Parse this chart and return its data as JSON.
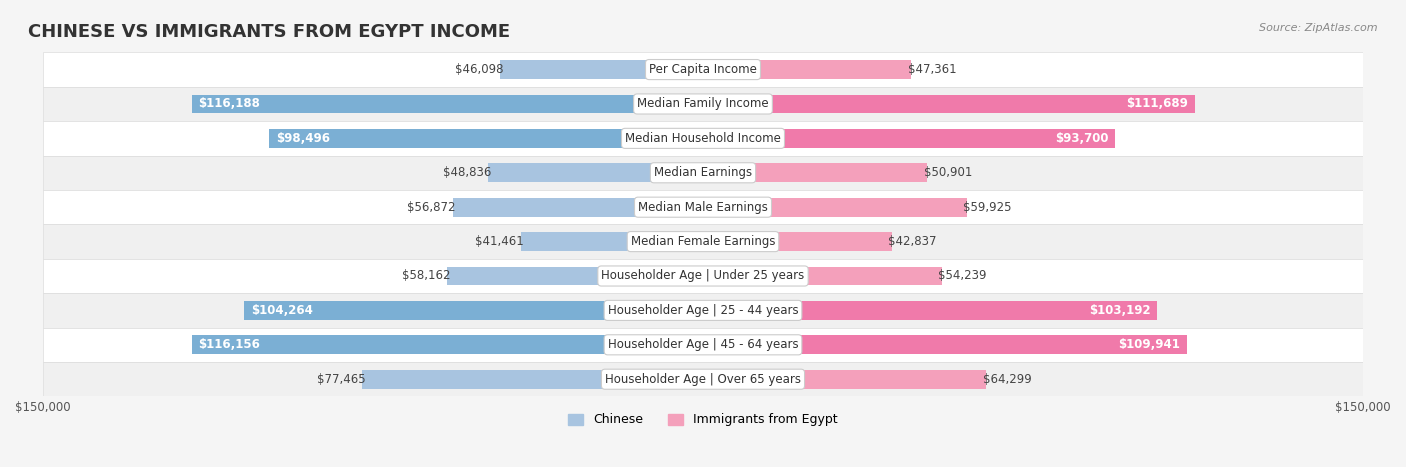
{
  "title": "CHINESE VS IMMIGRANTS FROM EGYPT INCOME",
  "source": "Source: ZipAtlas.com",
  "categories": [
    "Per Capita Income",
    "Median Family Income",
    "Median Household Income",
    "Median Earnings",
    "Median Male Earnings",
    "Median Female Earnings",
    "Householder Age | Under 25 years",
    "Householder Age | 25 - 44 years",
    "Householder Age | 45 - 64 years",
    "Householder Age | Over 65 years"
  ],
  "chinese_values": [
    46098,
    116188,
    98496,
    48836,
    56872,
    41461,
    58162,
    104264,
    116156,
    77465
  ],
  "egypt_values": [
    47361,
    111689,
    93700,
    50901,
    59925,
    42837,
    54239,
    103192,
    109941,
    64299
  ],
  "chinese_labels": [
    "$46,098",
    "$116,188",
    "$98,496",
    "$48,836",
    "$56,872",
    "$41,461",
    "$58,162",
    "$104,264",
    "$116,156",
    "$77,465"
  ],
  "egypt_labels": [
    "$47,361",
    "$111,689",
    "$93,700",
    "$50,901",
    "$59,925",
    "$42,837",
    "$54,239",
    "$103,192",
    "$109,941",
    "$64,299"
  ],
  "max_value": 150000,
  "chinese_color": "#a8c4e0",
  "egypt_color": "#f4a0bb",
  "chinese_dark_color": "#7bafd4",
  "egypt_dark_color": "#f07aaa",
  "bg_color": "#f5f5f5",
  "row_bg_light": "#ffffff",
  "row_bg_dark": "#eeeeee",
  "label_box_color": "#ffffff",
  "title_fontsize": 13,
  "label_fontsize": 8.5,
  "axis_fontsize": 8.5,
  "legend_fontsize": 9
}
